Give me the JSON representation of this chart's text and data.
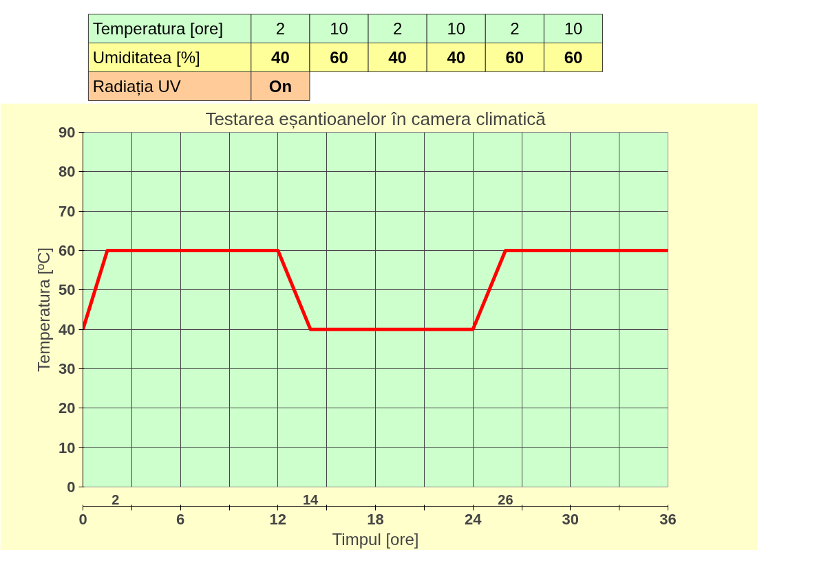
{
  "chart_data": {
    "type": "line",
    "title": "Testarea eșantioanelor în camera climatică",
    "xlabel": "Timpul [ore]",
    "ylabel": "Temperatura [ºC]",
    "x": [
      0,
      1.5,
      12,
      14,
      24,
      26,
      36
    ],
    "series": [
      {
        "color": "#ff0000",
        "values": [
          40,
          60,
          60,
          40,
          40,
          60,
          60
        ]
      }
    ],
    "xlim": [
      0,
      36
    ],
    "xticks": [
      0,
      {
        "value": 3,
        "label": null
      },
      6,
      {
        "value": 9,
        "label": null
      },
      12,
      {
        "value": 15,
        "label": null
      },
      18,
      {
        "value": 21,
        "label": null
      },
      24,
      {
        "value": 27,
        "label": null
      },
      30,
      {
        "value": 33,
        "label": null
      },
      36
    ],
    "x2lim": [
      0,
      36
    ],
    "x2ticks": [
      2,
      14,
      26
    ],
    "ylim": [
      0,
      90
    ],
    "yticks": [
      0,
      10,
      20,
      30,
      40,
      50,
      60,
      70,
      80,
      90
    ],
    "grid": true,
    "marker": "none",
    "line_style": "solid",
    "annotations": [
      "Temperatura [ore]",
      "2",
      "10",
      "2",
      "10",
      "2",
      "10",
      "Umiditatea [%]",
      "40",
      "60",
      "40",
      "40",
      "60",
      "60",
      "Radiația UV",
      "On"
    ]
  }
}
